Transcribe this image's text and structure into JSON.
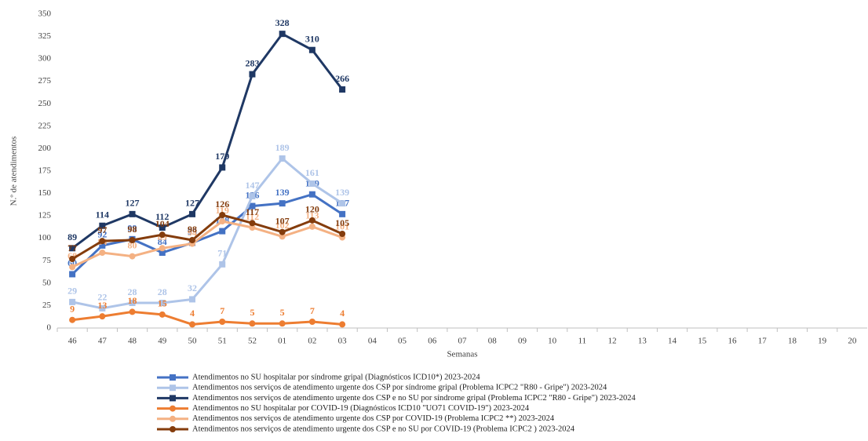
{
  "chart_data": {
    "type": "line",
    "y_label": "N.º de atendimentos",
    "x_label": "Semanas",
    "categories": [
      "46",
      "47",
      "48",
      "49",
      "50",
      "51",
      "52",
      "01",
      "02",
      "03",
      "04",
      "05",
      "06",
      "07",
      "08",
      "09",
      "10",
      "11",
      "12",
      "13",
      "14",
      "15",
      "16",
      "17",
      "18",
      "19",
      "20"
    ],
    "ylim": [
      0,
      350
    ],
    "yticks": [
      0,
      25,
      50,
      75,
      100,
      125,
      150,
      175,
      200,
      225,
      250,
      275,
      300,
      325,
      350
    ],
    "grid": false,
    "legend": "bottom",
    "series": [
      {
        "name": "Atendimentos no SU hospitalar por síndrome gripal (Diagnósticos ICD10*)  2023-2024",
        "color": "#4472c4",
        "marker": "square",
        "values": [
          60,
          92,
          99,
          84,
          95,
          108,
          136,
          139,
          149,
          127,
          null,
          null,
          null,
          null,
          null,
          null,
          null,
          null,
          null,
          null,
          null,
          null,
          null,
          null,
          null,
          null,
          null
        ]
      },
      {
        "name": "Atendimentos nos serviços de atendimento urgente dos CSP por síndrome gripal (Problema ICPC2  \"R80 - Gripe\")  2023-2024",
        "color": "#aec4e8",
        "marker": "square",
        "values": [
          29,
          22,
          28,
          28,
          32,
          71,
          147,
          189,
          161,
          139,
          null,
          null,
          null,
          null,
          null,
          null,
          null,
          null,
          null,
          null,
          null,
          null,
          null,
          null,
          null,
          null,
          null
        ]
      },
      {
        "name": "Atendimentos nos serviços de atendimento urgente dos CSP e no SU por síndrome gripal (Problema ICPC2  \"R80 - Gripe\")  2023-2024",
        "color": "#1f3864",
        "marker": "square",
        "values": [
          89,
          114,
          127,
          112,
          127,
          179,
          283,
          328,
          310,
          266,
          null,
          null,
          null,
          null,
          null,
          null,
          null,
          null,
          null,
          null,
          null,
          null,
          null,
          null,
          null,
          null,
          null
        ]
      },
      {
        "name": "Atendimentos no SU hospitalar por COVID-19 (Diagnósticos ICD10 \"UO71 COVID-19\")  2023-2024",
        "color": "#ed7d31",
        "marker": "circle",
        "values": [
          9,
          13,
          18,
          15,
          4,
          7,
          5,
          5,
          7,
          4,
          null,
          null,
          null,
          null,
          null,
          null,
          null,
          null,
          null,
          null,
          null,
          null,
          null,
          null,
          null,
          null,
          null
        ]
      },
      {
        "name": "Atendimentos nos serviços de atendimento urgente dos CSP por COVID-19 (Problema ICPC2 **)  2023-2024",
        "color": "#f4b183",
        "marker": "circle",
        "values": [
          68,
          84,
          80,
          89,
          94,
          119,
          112,
          102,
          113,
          101,
          null,
          null,
          null,
          null,
          null,
          null,
          null,
          null,
          null,
          null,
          null,
          null,
          null,
          null,
          null,
          null,
          null
        ]
      },
      {
        "name": "Atendimentos nos serviços de atendimento urgente dos CSP e no SU por COVID-19 (Problema ICPC2 )  2023-2024",
        "color": "#843c0c",
        "marker": "circle",
        "values": [
          77,
          97,
          98,
          104,
          98,
          126,
          117,
          107,
          120,
          105,
          null,
          null,
          null,
          null,
          null,
          null,
          null,
          null,
          null,
          null,
          null,
          null,
          null,
          null,
          null,
          null,
          null
        ]
      }
    ]
  }
}
